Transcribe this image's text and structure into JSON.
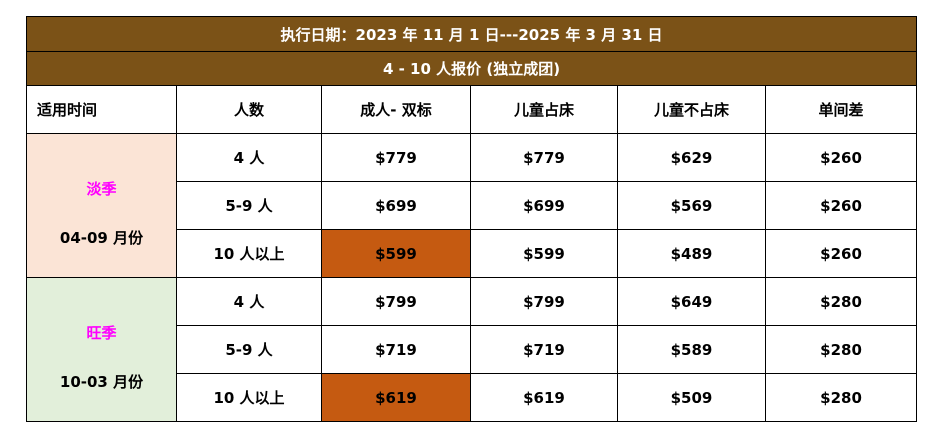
{
  "title": "执行日期：2023 年 11 月 1 日---2025 年 3 月 31 日",
  "subtitle": "4 - 10 人报价 (独立成团)",
  "colors": {
    "header_bg": "#7b5217",
    "low_season_bg": "#fbe4d6",
    "high_season_bg": "#e2efda",
    "season_label": "#ff00ff",
    "highlight": "#c55a11"
  },
  "columns": [
    "适用时间",
    "人数",
    "成人- 双标",
    "儿童占床",
    "儿童不占床",
    "单间差"
  ],
  "seasons": [
    {
      "name": "淡季",
      "months": "04-09 月份",
      "rows": [
        {
          "people": "4 人",
          "adult": "$779",
          "child_bed": "$779",
          "child_no_bed": "$629",
          "single": "$260"
        },
        {
          "people": "5-9 人",
          "adult": "$699",
          "child_bed": "$699",
          "child_no_bed": "$569",
          "single": "$260"
        },
        {
          "people": "10 人以上",
          "adult": "$599",
          "child_bed": "$599",
          "child_no_bed": "$489",
          "single": "$260"
        }
      ]
    },
    {
      "name": "旺季",
      "months": "10-03 月份",
      "rows": [
        {
          "people": "4 人",
          "adult": "$799",
          "child_bed": "$799",
          "child_no_bed": "$649",
          "single": "$280"
        },
        {
          "people": "5-9 人",
          "adult": "$719",
          "child_bed": "$719",
          "child_no_bed": "$589",
          "single": "$280"
        },
        {
          "people": "10 人以上",
          "adult": "$619",
          "child_bed": "$619",
          "child_no_bed": "$509",
          "single": "$280"
        }
      ]
    }
  ]
}
